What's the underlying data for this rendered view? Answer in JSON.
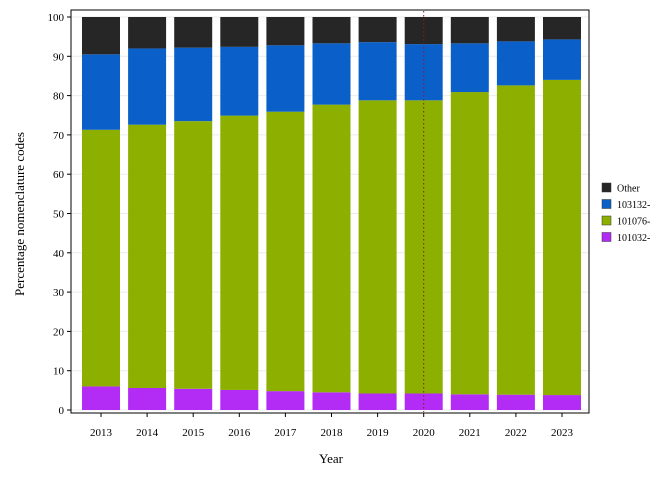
{
  "chart_data": {
    "type": "bar",
    "stacked": true,
    "xlabel": "Year",
    "ylabel": "Percentage nomenclature codes",
    "ylim": [
      0,
      100
    ],
    "yticks": [
      0,
      10,
      20,
      30,
      40,
      50,
      60,
      70,
      80,
      90,
      100
    ],
    "categories": [
      "2013",
      "2014",
      "2015",
      "2016",
      "2017",
      "2018",
      "2019",
      "2020",
      "2021",
      "2022",
      "2023"
    ],
    "series": [
      {
        "name": "101032-",
        "color": "#b22cf5",
        "values": [
          6.0,
          5.6,
          5.4,
          5.1,
          4.8,
          4.5,
          4.2,
          4.2,
          4.0,
          3.9,
          3.8
        ]
      },
      {
        "name": "101076-",
        "color": "#8db000",
        "values": [
          65.3,
          67.0,
          68.1,
          69.8,
          71.1,
          73.2,
          74.6,
          74.6,
          76.9,
          78.7,
          80.2
        ]
      },
      {
        "name": "103132-",
        "color": "#0a5fc8",
        "values": [
          19.2,
          19.4,
          18.7,
          17.5,
          16.9,
          15.6,
          14.8,
          14.3,
          12.4,
          11.2,
          10.3
        ]
      },
      {
        "name": "Other",
        "color": "#262626",
        "values": [
          9.5,
          8.0,
          7.8,
          7.6,
          7.2,
          6.7,
          6.4,
          6.9,
          6.7,
          6.2,
          5.7
        ]
      }
    ],
    "legend_order": [
      "Other",
      "103132-",
      "101076-",
      "101032-"
    ],
    "legend_position": "right",
    "reference_line": {
      "x": "2020",
      "color": "#8b1a1a",
      "style": "dotted"
    },
    "grid": true
  }
}
